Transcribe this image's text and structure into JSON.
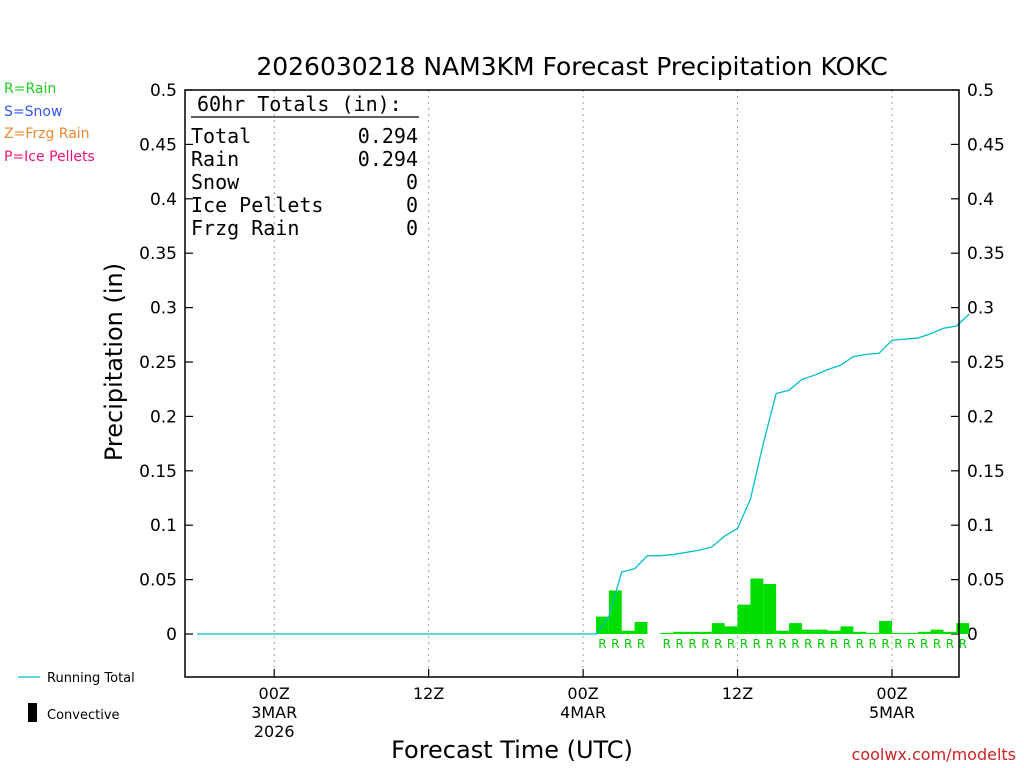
{
  "chart_data": {
    "type": "bar+line",
    "title": "2026030218 NAM3KM Forecast Precipitation KOKC",
    "xlabel": "Forecast Time (UTC)",
    "ylabel": "Precipitation (in)",
    "ylim": [
      -0.04,
      0.5
    ],
    "yticks": [
      0,
      0.05,
      0.1,
      0.15,
      0.2,
      0.25,
      0.3,
      0.35,
      0.4,
      0.45,
      0.5
    ],
    "ytick_labels": [
      "0",
      "0.05",
      "0.1",
      "0.15",
      "0.2",
      "0.25",
      "0.3",
      "0.35",
      "0.4",
      "0.45",
      "0.5"
    ],
    "x_range_hours": [
      18,
      78
    ],
    "x_unit": "forecast hour from 2026-03-02 18Z",
    "xticks": [
      {
        "hour": 24,
        "lines": [
          "00Z",
          "3MAR",
          "2026"
        ]
      },
      {
        "hour": 36,
        "lines": [
          "12Z"
        ]
      },
      {
        "hour": 48,
        "lines": [
          "00Z",
          "4MAR"
        ]
      },
      {
        "hour": 60,
        "lines": [
          "12Z"
        ]
      },
      {
        "hour": 72,
        "lines": [
          "00Z",
          "5MAR"
        ]
      }
    ],
    "grid_vertical": true,
    "totals": {
      "header": "60hr Totals (in):",
      "rows": [
        {
          "label": "Total",
          "value": "0.294"
        },
        {
          "label": "Rain",
          "value": "0.294"
        },
        {
          "label": "Snow",
          "value": "0"
        },
        {
          "label": "Ice Pellets",
          "value": "0"
        },
        {
          "label": "Frzg Rain",
          "value": "0"
        }
      ]
    },
    "hourly_precip": {
      "name": "Hourly Precipitation",
      "color": "#00dd00",
      "hours": [
        50,
        51,
        52,
        53,
        54,
        55,
        56,
        57,
        58,
        59,
        60,
        61,
        62,
        63,
        64,
        65,
        66,
        67,
        68,
        69,
        70,
        71,
        72,
        73,
        74,
        75,
        76,
        77,
        78
      ],
      "values": [
        0.016,
        0.04,
        0.003,
        0.011,
        0.0,
        0.001,
        0.002,
        0.002,
        0.002,
        0.01,
        0.007,
        0.027,
        0.051,
        0.046,
        0.003,
        0.01,
        0.004,
        0.004,
        0.003,
        0.007,
        0.002,
        0.001,
        0.012,
        0.001,
        0.001,
        0.002,
        0.004,
        0.002,
        0.01
      ]
    },
    "running_total": {
      "name": "Running Total",
      "color": "#00bfc8",
      "hours": [
        18,
        49,
        50,
        51,
        52,
        53,
        54,
        55,
        56,
        57,
        58,
        59,
        60,
        61,
        62,
        63,
        64,
        65,
        66,
        67,
        68,
        69,
        70,
        71,
        72,
        73,
        74,
        75,
        76,
        77,
        78
      ],
      "values": [
        0,
        0,
        0.016,
        0.057,
        0.06,
        0.072,
        0.072,
        0.073,
        0.075,
        0.077,
        0.08,
        0.09,
        0.097,
        0.124,
        0.175,
        0.221,
        0.224,
        0.234,
        0.238,
        0.243,
        0.247,
        0.255,
        0.257,
        0.258,
        0.27,
        0.271,
        0.272,
        0.276,
        0.281,
        0.283,
        0.294
      ]
    },
    "ptype_markers": {
      "label": "R",
      "color": "#00cc00",
      "hours": [
        50,
        51,
        52,
        53,
        55,
        56,
        57,
        58,
        59,
        60,
        61,
        62,
        63,
        64,
        65,
        66,
        67,
        68,
        69,
        70,
        71,
        72,
        73,
        74,
        75,
        76,
        77,
        78
      ]
    }
  },
  "ptype_legend": [
    {
      "text": "R=Rain",
      "color": "#22cc22"
    },
    {
      "text": "S=Snow",
      "color": "#3355ee"
    },
    {
      "text": "Z=Frzg Rain",
      "color": "#ee8833"
    },
    {
      "text": "P=Ice Pellets",
      "color": "#ee1177"
    }
  ],
  "bottom_legend": {
    "running_total": "Running Total",
    "convective": "Convective"
  },
  "credit": "coolwx.com/modelts"
}
